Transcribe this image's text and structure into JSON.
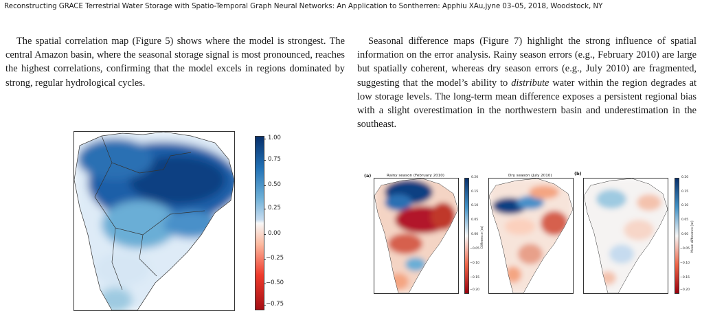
{
  "header": {
    "running_head": "Reconstructing GRACE Terrestrial Water Storage with Spatio-Temporal Graph Neural Networks: An Application to Sontherren: Apphiu XAu,jyne 03–05, 2018, Woodstock, NY"
  },
  "left_column": {
    "paragraph": "The spatial correlation map (Figure 5) shows where the model is strongest. The central Amazon basin, where the seasonal storage signal is most pronounced, reaches the highest correlations, confirming that the model excels in regions dominated by strong, regular hydrological cycles."
  },
  "right_column": {
    "paragraph_before": "Seasonal difference maps (Figure 7) highlight the strong influence of spatial information on the error analysis. Rainy season errors (e.g., February 2010) are large but spatially coherent, whereas dry season errors (e.g., July 2010) are fragmented, suggesting that the model’s ability to ",
    "paragraph_emphasis": "distribute",
    "paragraph_after": " water within the region degrades at low storage levels. The long-term mean difference exposes a persistent regional bias with a slight overestimation in the northwestern basin and underestimation in the southeast."
  },
  "figure5": {
    "colorbar_ticks": [
      "1.00",
      "0.75",
      "0.50",
      "0.25",
      "0.00",
      "−0.25",
      "−0.50",
      "−0.75"
    ],
    "colormap": [
      "#b2182b",
      "#f7f7f7",
      "#08519c"
    ]
  },
  "figure7": {
    "panel_a_label": "(a)",
    "panel_b_label": "(b)",
    "rainy_title": "Rainy season (February 2010)",
    "dry_title": "Dry season (July 2010)",
    "cbar_a_ticks": [
      "0.20",
      "0.15",
      "0.10",
      "0.05",
      "0.00",
      "−0.05",
      "−0.10",
      "−0.15",
      "−0.20"
    ],
    "cbar_a_label": "Difference [m]",
    "cbar_b_ticks": [
      "0.20",
      "0.15",
      "0.10",
      "0.05",
      "0.00",
      "−0.05",
      "−0.10",
      "−0.15",
      "−0.20"
    ],
    "cbar_b_label": "Mean difference [m]"
  }
}
